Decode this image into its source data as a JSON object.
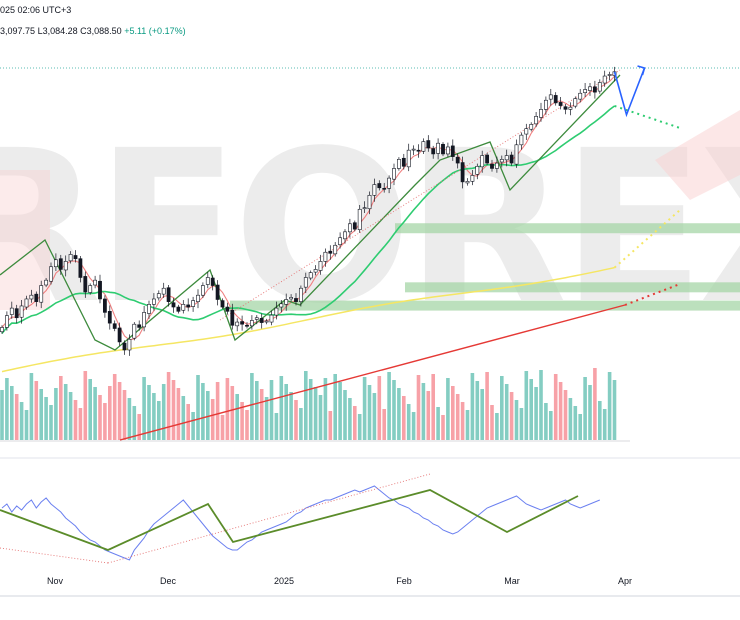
{
  "header": {
    "line1": "025 02:06 UTC+3",
    "ohlc_high": "3,097.75",
    "ohlc_low_label": "L",
    "ohlc_low": "3,084.28",
    "ohlc_close_label": "C",
    "ohlc_close": "3,088.50",
    "change": "+5.11 (+0.17%)"
  },
  "watermark": {
    "text": "RFOREX.c",
    "color": "#e9e9e9",
    "accent_color": "#f7c9c9"
  },
  "colors": {
    "up_candle": "#089981",
    "down_candle": "#f23645",
    "volume_up": "#84cdc2",
    "volume_down": "#f7a1a7",
    "ema_fast": "#f08080",
    "ema_20": "#2ecc71",
    "ema_50": "#f5e663",
    "ema_200": "#e53935",
    "trend_line": "#3d8b3d",
    "channel_dotted": "#e57373",
    "rsi_line": "#6b80f0",
    "rsi_zigzag": "#5b8c2a",
    "projection_arrow": "#2962ff",
    "support_zone": "#a5d6a7"
  },
  "x_axis": {
    "labels": [
      "Nov",
      "Dec",
      "2025",
      "Feb",
      "Mar",
      "Apr"
    ]
  },
  "chart_data": [
    {
      "type": "candlestick",
      "title": "",
      "instrument_note": "daily candles with volume and moving averages",
      "y_unit": "price",
      "ylim": [
        2560,
        3110
      ],
      "x_range": [
        "2024-10-06",
        "2025-04-07"
      ],
      "candle_count": 126,
      "start_date": "2024-10-09",
      "closes": [
        2612,
        2634,
        2648,
        2630,
        2652,
        2665,
        2672,
        2660,
        2690,
        2700,
        2725,
        2738,
        2720,
        2735,
        2748,
        2740,
        2705,
        2678,
        2690,
        2700,
        2665,
        2640,
        2620,
        2610,
        2585,
        2570,
        2590,
        2618,
        2612,
        2640,
        2655,
        2665,
        2675,
        2685,
        2660,
        2650,
        2642,
        2655,
        2650,
        2662,
        2672,
        2690,
        2705,
        2690,
        2664,
        2650,
        2642,
        2616,
        2622,
        2618,
        2615,
        2625,
        2630,
        2621,
        2624,
        2635,
        2648,
        2656,
        2664,
        2668,
        2660,
        2685,
        2705,
        2714,
        2720,
        2735,
        2752,
        2750,
        2765,
        2779,
        2790,
        2805,
        2795,
        2832,
        2835,
        2858,
        2878,
        2872,
        2870,
        2890,
        2908,
        2925,
        2912,
        2942,
        2944,
        2940,
        2958,
        2946,
        2935,
        2955,
        2935,
        2948,
        2930,
        2918,
        2883,
        2884,
        2895,
        2912,
        2932,
        2918,
        2908,
        2918,
        2925,
        2932,
        2918,
        2952,
        2970,
        2982,
        2990,
        3005,
        3018,
        3035,
        3045,
        3030,
        3025,
        3018,
        3022,
        3038,
        3048,
        3055,
        3060,
        3050,
        3068,
        3080,
        3083,
        3088
      ],
      "opens_note": "each candle opens near the previous close",
      "projection": {
        "direction": "down-then-up",
        "from_price": 3088,
        "low_price": 3008,
        "high_price": 3095
      },
      "moving_averages": [
        {
          "label": "",
          "color": "#f08080",
          "period_hint": "fast"
        },
        {
          "label": "",
          "color": "#2ecc71",
          "period_hint": "medium"
        },
        {
          "label": "",
          "color": "#f5e663",
          "period_hint": "slow"
        },
        {
          "label": "",
          "color": "#e53935",
          "period_hint": "long"
        }
      ],
      "horizontal_levels": [
        3095
      ],
      "zones": [
        {
          "from": 2794,
          "to": 2806
        },
        {
          "from": 2684,
          "to": 2696
        },
        {
          "from": 2652,
          "to": 2662
        }
      ],
      "volume_zone": "below price"
    },
    {
      "type": "line",
      "title": "",
      "x_labels": [
        "Nov",
        "Dec",
        "2025",
        "Feb",
        "Mar",
        "Apr"
      ],
      "series": [
        {
          "values": [
            62,
            66,
            58,
            64,
            60,
            66,
            70,
            62,
            68,
            72,
            66,
            62,
            58,
            52,
            48,
            44,
            38,
            34,
            30,
            28,
            24,
            20,
            18,
            16,
            14,
            12,
            10,
            20,
            26,
            32,
            40,
            46,
            50,
            54,
            58,
            62,
            66,
            70,
            64,
            58,
            52,
            46,
            40,
            34,
            30,
            26,
            22,
            20,
            20,
            24,
            28,
            30,
            34,
            38,
            40,
            42,
            44,
            46,
            48,
            52,
            56,
            58,
            62,
            64,
            66,
            68,
            70,
            70,
            72,
            74,
            76,
            78,
            80,
            78,
            80,
            82,
            84,
            80,
            76,
            72,
            70,
            66,
            64,
            62,
            58,
            56,
            52,
            50,
            46,
            44,
            40,
            38,
            36,
            38,
            42,
            46,
            50,
            54,
            58,
            62,
            64,
            66,
            68,
            70,
            72,
            74,
            70,
            66,
            64,
            62,
            60,
            62,
            64,
            66,
            68,
            70,
            66,
            64,
            62,
            64,
            66,
            68,
            70
          ]
        }
      ],
      "zigzag_pivots": [
        60,
        20,
        66,
        28,
        80,
        38,
        74
      ],
      "ylim": [
        0,
        100
      ]
    }
  ]
}
